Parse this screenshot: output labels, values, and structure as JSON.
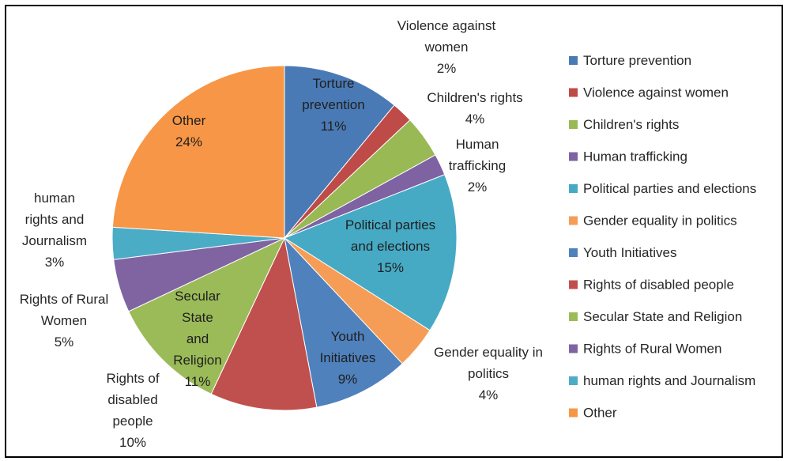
{
  "chart_data": {
    "type": "pie",
    "title": "",
    "legend_position": "right",
    "slices": [
      {
        "name": "Torture prevention",
        "value": 11,
        "label_lines": [
          "Torture",
          "prevention",
          "11%"
        ],
        "color": "#4a7ab5",
        "label_inside": true
      },
      {
        "name": "Violence against women",
        "value": 2,
        "label_lines": [
          "Violence against",
          "women",
          "2%"
        ],
        "color": "#be4b48",
        "label_inside": false
      },
      {
        "name": "Children's rights",
        "value": 4,
        "label_lines": [
          "Children's rights",
          "4%"
        ],
        "color": "#98b954",
        "label_inside": false
      },
      {
        "name": "Human trafficking",
        "value": 2,
        "label_lines": [
          "Human",
          "trafficking",
          "2%"
        ],
        "color": "#7e62a1",
        "label_inside": false
      },
      {
        "name": "Political parties and elections",
        "value": 15,
        "label_lines": [
          "Political parties",
          "and elections",
          "15%"
        ],
        "color": "#46aac5",
        "label_inside": true
      },
      {
        "name": "Gender equality in politics",
        "value": 4,
        "label_lines": [
          "Gender equality in",
          "politics",
          "4%"
        ],
        "color": "#f59d56",
        "label_inside": false
      },
      {
        "name": "Youth Initiatives",
        "value": 9,
        "label_lines": [
          "Youth",
          "Initiatives",
          "9%"
        ],
        "color": "#4f81bd",
        "label_inside": true
      },
      {
        "name": "Rights of disabled people",
        "value": 10,
        "label_lines": [
          "Rights of",
          "disabled",
          "people",
          "10%"
        ],
        "color": "#c0504d",
        "label_inside": false
      },
      {
        "name": "Secular State and Religion",
        "value": 11,
        "label_lines": [
          "Secular",
          "State",
          "and",
          "Religion",
          "11%"
        ],
        "color": "#9bbb59",
        "label_inside": true
      },
      {
        "name": "Rights of Rural Women",
        "value": 5,
        "label_lines": [
          "Rights of Rural",
          "Women",
          "5%"
        ],
        "color": "#8064a2",
        "label_inside": false
      },
      {
        "name": "human rights and Journalism",
        "value": 3,
        "label_lines": [
          "human",
          "rights and",
          "Journalism",
          "3%"
        ],
        "color": "#4bacc6",
        "label_inside": false
      },
      {
        "name": "Other",
        "value": 24,
        "label_lines": [
          "Other",
          "24%"
        ],
        "color": "#f79646",
        "label_inside": true
      }
    ]
  }
}
